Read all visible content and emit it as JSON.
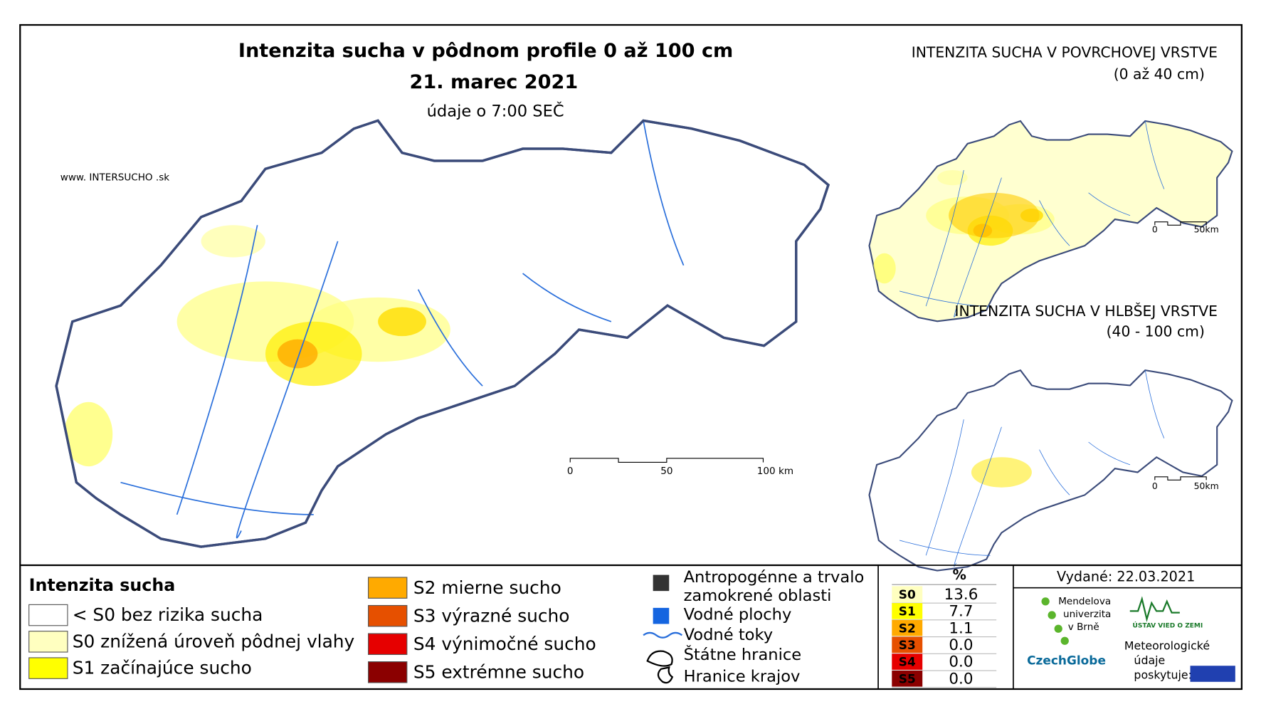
{
  "header": {
    "title": "Intenzita sucha v pôdnom profile 0 až 100 cm",
    "date": "21. marec 2021",
    "time": "údaje o 7:00 SEČ",
    "website": "www. INTERSUCHO .sk"
  },
  "main_map": {
    "scale": [
      "0",
      "50",
      "100 km"
    ]
  },
  "insets": [
    {
      "title": "INTENZITA SUCHA V POVRCHOVEJ VRSTVE",
      "subtitle": "(0 až 40 cm)",
      "scale": [
        "0",
        "50km"
      ]
    },
    {
      "title": "INTENZITA SUCHA V HLBŠEJ VRSTVE",
      "subtitle": "(40 - 100 cm)",
      "scale": [
        "0",
        "50km"
      ]
    }
  ],
  "legend": {
    "title": "Intenzita sucha",
    "items": [
      {
        "label": "< S0 bez rizika sucha",
        "color": "#ffffff"
      },
      {
        "label": "S0 znížená úroveň pôdnej vlahy",
        "color": "#ffffc0"
      },
      {
        "label": "S1 začínajúce sucho",
        "color": "#ffff00"
      },
      {
        "label": "S2 mierne sucho",
        "color": "#ffaa00"
      },
      {
        "label": "S3 výrazné sucho",
        "color": "#e65000"
      },
      {
        "label": "S4 výnimočné sucho",
        "color": "#e60000"
      },
      {
        "label": "S5 extrémne sucho",
        "color": "#8b0000"
      }
    ],
    "symbols": [
      "Antropogénne a trvalo zamokrené oblasti",
      "Vodné plochy",
      "Vodné toky",
      "Štátne hranice",
      "Hranice krajov"
    ]
  },
  "table": {
    "header": "%",
    "rows": [
      [
        "S0",
        "13.6"
      ],
      [
        "S1",
        "7.7"
      ],
      [
        "S2",
        "1.1"
      ],
      [
        "S3",
        "0.0"
      ],
      [
        "S4",
        "0.0"
      ],
      [
        "S5",
        "0.0"
      ]
    ]
  },
  "issued": "Vydané: 22.03.2021",
  "logos": {
    "mendel": [
      "Mendelova",
      "univerzita",
      "v Brně"
    ],
    "czechglobe": "CzechGlobe",
    "ustav": "ÚSTAV VIED O ZEMI",
    "provider": [
      "Meteorologické",
      "údaje",
      "poskytuje:"
    ]
  }
}
